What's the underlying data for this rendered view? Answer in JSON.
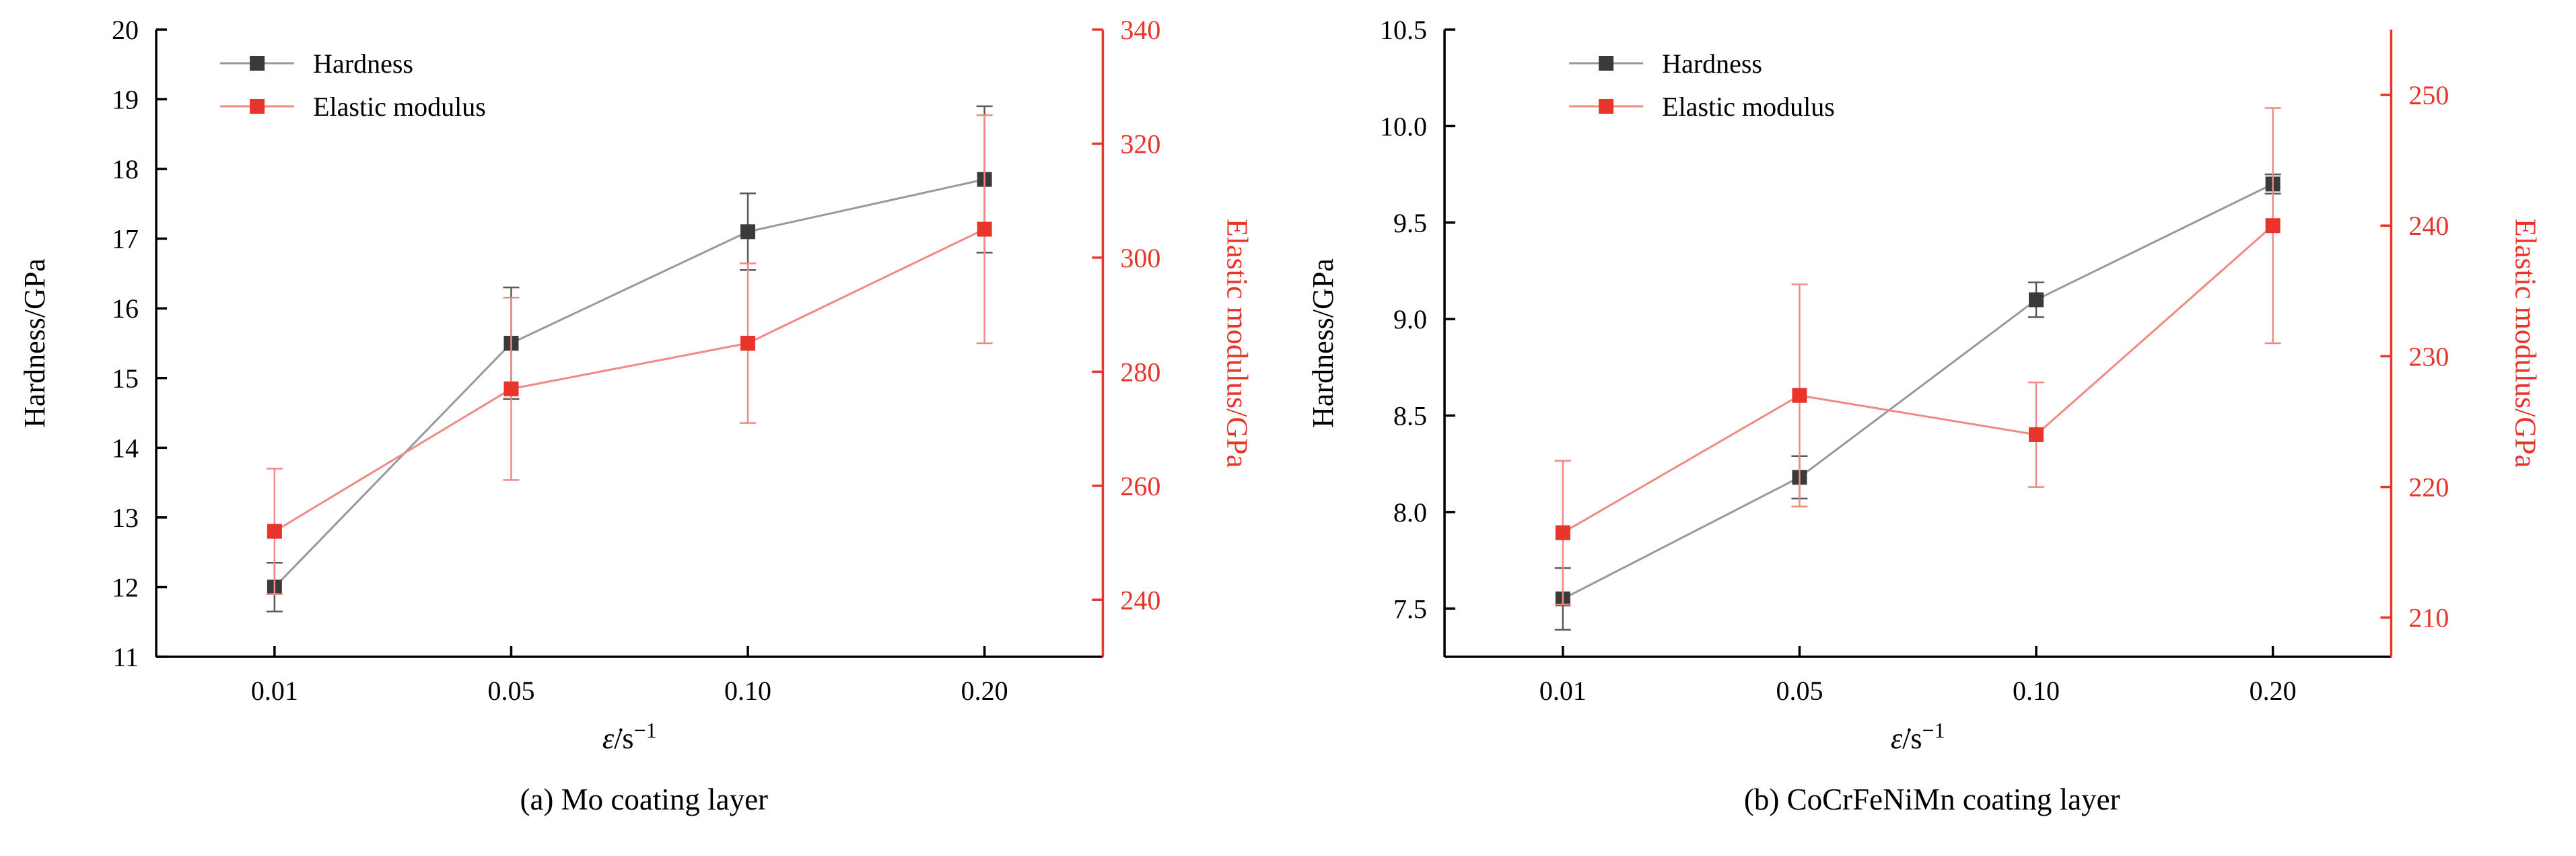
{
  "figure": {
    "background": "#ffffff",
    "panels": [
      "(a) Mo coating layer",
      "(b) CoCrFeNiMn coating layer"
    ]
  },
  "chart_data": [
    {
      "type": "line",
      "id": "a",
      "caption": "(a) Mo coating layer",
      "xlabel": {
        "symbol": "ε̇",
        "mid": "/s",
        "sup": "−1",
        "display": "ε̇/s⁻¹"
      },
      "categories": [
        "0.01",
        "0.05",
        "0.10",
        "0.20"
      ],
      "left_axis": {
        "label": "Hardness/GPa",
        "min": 11,
        "max": 20,
        "tick_values": [
          11,
          12,
          13,
          14,
          15,
          16,
          17,
          18,
          19,
          20
        ],
        "tick_labels": [
          "11",
          "12",
          "13",
          "14",
          "15",
          "16",
          "17",
          "18",
          "19",
          "20"
        ],
        "color": "#000000"
      },
      "right_axis": {
        "label": "Elastic modulus/GPa",
        "min": 230,
        "max": 340,
        "tick_values": [
          240,
          260,
          280,
          300,
          320,
          340
        ],
        "tick_labels": [
          "240",
          "260",
          "280",
          "300",
          "320",
          "340"
        ],
        "color": "#e8352c"
      },
      "legend": {
        "position": "upper-left",
        "entries": [
          "Hardness",
          "Elastic modulus"
        ]
      },
      "series": [
        {
          "name": "Hardness",
          "axis": "left",
          "marker_color": "#3a3a3a",
          "line_color": "#999999",
          "error_color": "#5a5a5a",
          "values": [
            12.0,
            15.5,
            17.1,
            17.85
          ],
          "errors": [
            0.35,
            0.8,
            0.55,
            1.05
          ]
        },
        {
          "name": "Elastic modulus",
          "axis": "right",
          "marker_color": "#e8352c",
          "line_color": "#f08a83",
          "error_color": "#f08a83",
          "values": [
            252,
            277,
            285,
            305
          ],
          "errors": [
            11,
            16,
            14,
            20
          ]
        }
      ]
    },
    {
      "type": "line",
      "id": "b",
      "caption": "(b) CoCrFeNiMn coating layer",
      "xlabel": {
        "symbol": "ε̇",
        "mid": "/s",
        "sup": "−1",
        "display": "ε̇/s⁻¹"
      },
      "categories": [
        "0.01",
        "0.05",
        "0.10",
        "0.20"
      ],
      "left_axis": {
        "label": "Hardness/GPa",
        "min": 7.25,
        "max": 10.5,
        "tick_values": [
          7.5,
          8.0,
          8.5,
          9.0,
          9.5,
          10.0,
          10.5
        ],
        "tick_labels": [
          "7.5",
          "8.0",
          "8.5",
          "9.0",
          "9.5",
          "10.0",
          "10.5"
        ],
        "color": "#000000"
      },
      "right_axis": {
        "label": "Elastic modulus/GPa",
        "min": 207,
        "max": 255,
        "tick_values": [
          210,
          220,
          230,
          240,
          250
        ],
        "tick_labels": [
          "210",
          "220",
          "230",
          "240",
          "250"
        ],
        "color": "#e8352c"
      },
      "legend": {
        "position": "upper-left",
        "entries": [
          "Hardness",
          "Elastic modulus"
        ]
      },
      "series": [
        {
          "name": "Hardness",
          "axis": "left",
          "marker_color": "#3a3a3a",
          "line_color": "#999999",
          "error_color": "#5a5a5a",
          "values": [
            7.55,
            8.18,
            9.1,
            9.7
          ],
          "errors": [
            0.16,
            0.11,
            0.09,
            0.05
          ]
        },
        {
          "name": "Elastic modulus",
          "axis": "right",
          "marker_color": "#e8352c",
          "line_color": "#f08a83",
          "error_color": "#f08a83",
          "values": [
            216.5,
            227,
            224,
            240
          ],
          "errors": [
            5.5,
            8.5,
            4,
            9
          ]
        }
      ]
    }
  ]
}
